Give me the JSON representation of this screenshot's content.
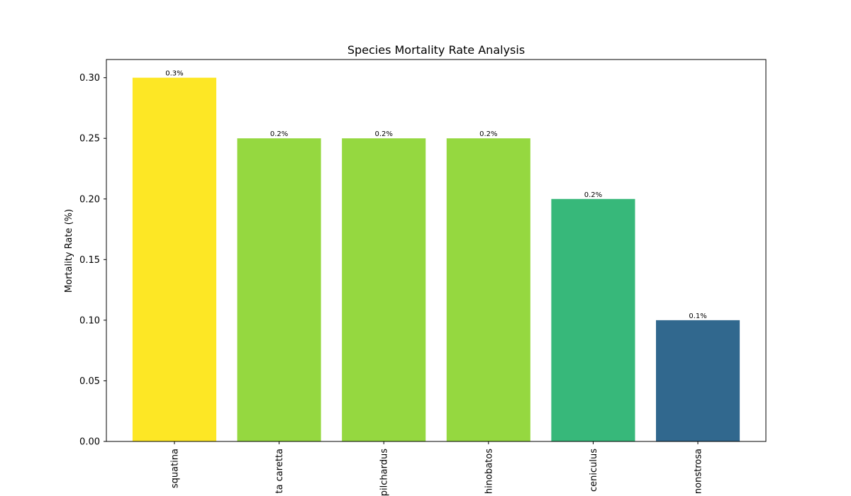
{
  "chart_data": {
    "type": "bar",
    "title": "Species Mortality Rate Analysis",
    "xlabel": "",
    "ylabel": "Mortality Rate (%)",
    "ylim": [
      0,
      0.315
    ],
    "yticks": [
      "0.00",
      "0.05",
      "0.10",
      "0.15",
      "0.20",
      "0.25",
      "0.30"
    ],
    "ytick_values": [
      0,
      0.05,
      0.1,
      0.15,
      0.2,
      0.25,
      0.3
    ],
    "categories": [
      "squatina",
      "ta caretta",
      "pilchardus",
      "hinobatos",
      "ceniculus",
      "nonstrosa"
    ],
    "values": [
      0.3,
      0.25,
      0.25,
      0.25,
      0.2,
      0.1
    ],
    "data_labels": [
      "0.3%",
      "0.2%",
      "0.2%",
      "0.2%",
      "0.2%",
      "0.1%"
    ],
    "bar_colors": [
      "#fde725",
      "#95d840",
      "#95d840",
      "#95d840",
      "#37b87a",
      "#31688e"
    ],
    "grid": false,
    "legend": "none"
  }
}
